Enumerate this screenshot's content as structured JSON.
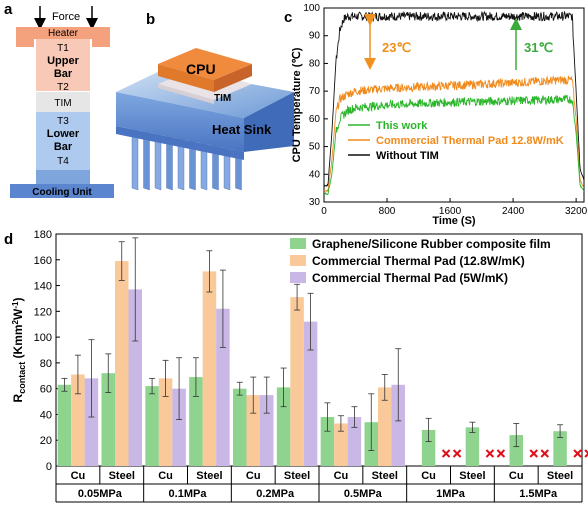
{
  "colors": {
    "graphene": "#8fd48e",
    "pad128": "#f9c99a",
    "pad5": "#c9b7e6",
    "green_line": "#2ab52a",
    "orange_line": "#f08a1c",
    "black_line": "#111111",
    "arrow_orange": "#f0901e",
    "arrow_green": "#3aaa3a",
    "cross": "#e0101a"
  },
  "panel_a": {
    "label": "a",
    "force": "Force",
    "heater": "Heater",
    "t1": "T1",
    "upper_bar_1": "Upper",
    "upper_bar_2": "Bar",
    "t2": "T2",
    "tim": "TIM",
    "t3": "T3",
    "lower_bar_1": "Lower",
    "lower_bar_2": "Bar",
    "t4": "T4",
    "cooling": "Cooling Unit"
  },
  "panel_b": {
    "label": "b",
    "cpu": "CPU",
    "tim": "TIM",
    "heat_sink": "Heat Sink"
  },
  "panel_c": {
    "label": "c",
    "annot_23": "23℃",
    "annot_31": "31℃"
  },
  "panel_d": {
    "label": "d"
  },
  "chart_data": [
    {
      "panel": "c",
      "type": "line",
      "xlabel": "Time (S)",
      "ylabel": "CPU Temperature (℃)",
      "xlim": [
        0,
        3300
      ],
      "ylim": [
        30,
        100
      ],
      "xticks": [
        0,
        800,
        1600,
        2400,
        3200
      ],
      "yticks": [
        30,
        40,
        50,
        60,
        70,
        80,
        90,
        100
      ],
      "legend_position": "bottom-right",
      "series": [
        {
          "name": "This work",
          "color": "#2ab52a",
          "x": [
            0,
            50,
            100,
            150,
            200,
            300,
            400,
            800,
            1600,
            2400,
            3000,
            3150,
            3200,
            3250,
            3300
          ],
          "y": [
            33,
            33,
            40,
            55,
            60,
            63,
            64,
            65,
            66,
            66.5,
            67,
            67,
            55,
            36,
            34
          ]
        },
        {
          "name": "Commercial Thermal Pad 12.8W/mK",
          "color": "#f08a1c",
          "x": [
            0,
            50,
            100,
            150,
            200,
            300,
            400,
            800,
            1600,
            2400,
            3000,
            3150,
            3200,
            3250,
            3300
          ],
          "y": [
            34,
            34,
            45,
            62,
            67,
            69,
            70,
            71,
            72,
            73,
            74,
            74,
            60,
            38,
            35
          ]
        },
        {
          "name": "Without TIM",
          "color": "#111111",
          "x": [
            0,
            50,
            100,
            150,
            200,
            250,
            300,
            400,
            800,
            1600,
            2400,
            3000,
            3150,
            3200,
            3250,
            3300
          ],
          "y": [
            36,
            36,
            55,
            80,
            92,
            96,
            97,
            97,
            97,
            97,
            97,
            97,
            97,
            70,
            42,
            38
          ]
        }
      ],
      "annotations": [
        "23℃",
        "31℃"
      ]
    },
    {
      "panel": "d",
      "type": "bar",
      "ylabel": "Rcontact (Kmm²W⁻¹)",
      "ylim": [
        0,
        180
      ],
      "yticks": [
        0,
        20,
        40,
        60,
        80,
        100,
        120,
        140,
        160,
        180
      ],
      "legend_position": "top-right",
      "pressures": [
        "0.05MPa",
        "0.1MPa",
        "0.2MPa",
        "0.5MPa",
        "1MPa",
        "1.5MPa"
      ],
      "materials": [
        "Cu",
        "Steel"
      ],
      "series": [
        {
          "name": "Graphene/Silicone Rubber composite film",
          "color": "#8fd48e",
          "values": [
            63,
            72,
            62,
            69,
            60,
            61,
            38,
            34,
            28,
            30,
            24,
            27
          ],
          "errors": [
            5,
            15,
            6,
            15,
            5,
            15,
            11,
            22,
            9,
            4,
            9,
            5
          ]
        },
        {
          "name": "Commercial Thermal Pad (12.8W/mK)",
          "color": "#f9c99a",
          "values": [
            71,
            159,
            68,
            151,
            55,
            131,
            33,
            61,
            null,
            null,
            null,
            null
          ],
          "errors": [
            15,
            15,
            14,
            16,
            14,
            10,
            6,
            10,
            null,
            null,
            null,
            null
          ]
        },
        {
          "name": "Commercial Thermal Pad (5W/mK)",
          "color": "#c9b7e6",
          "values": [
            68,
            137,
            60,
            122,
            55,
            112,
            38,
            63,
            null,
            null,
            null,
            null
          ],
          "errors": [
            30,
            40,
            24,
            30,
            14,
            22,
            8,
            28,
            null,
            null,
            null,
            null
          ]
        }
      ]
    }
  ]
}
